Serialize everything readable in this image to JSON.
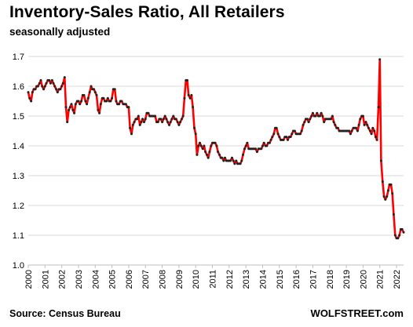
{
  "title": "Inventory-Sales  Ratio, All Retailers",
  "subtitle": "seasonally adjusted",
  "source": "Source: Census Bureau",
  "brand": "WOLFSTREET.com",
  "colors": {
    "line": "#ff0000",
    "marker": "#222222",
    "grid": "#d9d9d9",
    "axis": "#bfbfbf"
  },
  "chart_data": {
    "type": "line",
    "title": "Inventory-Sales  Ratio, All Retailers",
    "subtitle": "seasonally adjusted",
    "xlabel": "",
    "ylabel": "",
    "ylim": [
      1.0,
      1.7
    ],
    "yticks": [
      "1.0",
      "1.1",
      "1.2",
      "1.3",
      "1.4",
      "1.5",
      "1.6",
      "1.7"
    ],
    "xlim": [
      2000.0,
      2022.42
    ],
    "xticks": [
      "2000",
      "2001",
      "2002",
      "2003",
      "2004",
      "2005",
      "2006",
      "2007",
      "2008",
      "2009",
      "2010",
      "2011",
      "2012",
      "2013",
      "2014",
      "2015",
      "2016",
      "2017",
      "2018",
      "2019",
      "2020",
      "2021",
      "2022"
    ],
    "grid": "horizontal",
    "legend": "none",
    "series": [
      {
        "x_unit": "year (monthly)",
        "points": [
          [
            2000.0,
            1.58
          ],
          [
            2000.08,
            1.56
          ],
          [
            2000.17,
            1.55
          ],
          [
            2000.25,
            1.58
          ],
          [
            2000.33,
            1.59
          ],
          [
            2000.42,
            1.59
          ],
          [
            2000.5,
            1.6
          ],
          [
            2000.58,
            1.6
          ],
          [
            2000.67,
            1.61
          ],
          [
            2000.75,
            1.62
          ],
          [
            2000.83,
            1.6
          ],
          [
            2000.92,
            1.59
          ],
          [
            2001.0,
            1.6
          ],
          [
            2001.08,
            1.61
          ],
          [
            2001.17,
            1.62
          ],
          [
            2001.25,
            1.62
          ],
          [
            2001.33,
            1.61
          ],
          [
            2001.42,
            1.62
          ],
          [
            2001.5,
            1.61
          ],
          [
            2001.58,
            1.6
          ],
          [
            2001.67,
            1.59
          ],
          [
            2001.75,
            1.58
          ],
          [
            2001.83,
            1.59
          ],
          [
            2001.92,
            1.59
          ],
          [
            2002.0,
            1.6
          ],
          [
            2002.08,
            1.61
          ],
          [
            2002.17,
            1.63
          ],
          [
            2002.25,
            1.53
          ],
          [
            2002.33,
            1.48
          ],
          [
            2002.42,
            1.52
          ],
          [
            2002.5,
            1.53
          ],
          [
            2002.58,
            1.54
          ],
          [
            2002.67,
            1.52
          ],
          [
            2002.75,
            1.51
          ],
          [
            2002.83,
            1.54
          ],
          [
            2002.92,
            1.55
          ],
          [
            2003.0,
            1.55
          ],
          [
            2003.08,
            1.54
          ],
          [
            2003.17,
            1.55
          ],
          [
            2003.25,
            1.57
          ],
          [
            2003.33,
            1.57
          ],
          [
            2003.42,
            1.55
          ],
          [
            2003.5,
            1.54
          ],
          [
            2003.58,
            1.56
          ],
          [
            2003.67,
            1.58
          ],
          [
            2003.75,
            1.6
          ],
          [
            2003.83,
            1.59
          ],
          [
            2003.92,
            1.59
          ],
          [
            2004.0,
            1.58
          ],
          [
            2004.08,
            1.57
          ],
          [
            2004.17,
            1.52
          ],
          [
            2004.25,
            1.51
          ],
          [
            2004.33,
            1.54
          ],
          [
            2004.42,
            1.56
          ],
          [
            2004.5,
            1.56
          ],
          [
            2004.58,
            1.55
          ],
          [
            2004.67,
            1.55
          ],
          [
            2004.75,
            1.56
          ],
          [
            2004.83,
            1.55
          ],
          [
            2004.92,
            1.55
          ],
          [
            2005.0,
            1.56
          ],
          [
            2005.08,
            1.59
          ],
          [
            2005.17,
            1.59
          ],
          [
            2005.25,
            1.55
          ],
          [
            2005.33,
            1.54
          ],
          [
            2005.42,
            1.54
          ],
          [
            2005.5,
            1.55
          ],
          [
            2005.58,
            1.55
          ],
          [
            2005.67,
            1.54
          ],
          [
            2005.75,
            1.54
          ],
          [
            2005.83,
            1.54
          ],
          [
            2005.92,
            1.53
          ],
          [
            2006.0,
            1.53
          ],
          [
            2006.08,
            1.46
          ],
          [
            2006.17,
            1.44
          ],
          [
            2006.25,
            1.47
          ],
          [
            2006.33,
            1.48
          ],
          [
            2006.42,
            1.49
          ],
          [
            2006.5,
            1.49
          ],
          [
            2006.58,
            1.5
          ],
          [
            2006.67,
            1.47
          ],
          [
            2006.75,
            1.48
          ],
          [
            2006.83,
            1.49
          ],
          [
            2006.92,
            1.48
          ],
          [
            2007.0,
            1.49
          ],
          [
            2007.08,
            1.51
          ],
          [
            2007.17,
            1.51
          ],
          [
            2007.25,
            1.5
          ],
          [
            2007.33,
            1.5
          ],
          [
            2007.42,
            1.5
          ],
          [
            2007.5,
            1.5
          ],
          [
            2007.58,
            1.5
          ],
          [
            2007.67,
            1.48
          ],
          [
            2007.75,
            1.48
          ],
          [
            2007.83,
            1.49
          ],
          [
            2007.92,
            1.49
          ],
          [
            2008.0,
            1.48
          ],
          [
            2008.08,
            1.49
          ],
          [
            2008.17,
            1.5
          ],
          [
            2008.25,
            1.49
          ],
          [
            2008.33,
            1.48
          ],
          [
            2008.42,
            1.47
          ],
          [
            2008.5,
            1.48
          ],
          [
            2008.58,
            1.49
          ],
          [
            2008.67,
            1.5
          ],
          [
            2008.75,
            1.49
          ],
          [
            2008.83,
            1.49
          ],
          [
            2008.92,
            1.48
          ],
          [
            2009.0,
            1.47
          ],
          [
            2009.08,
            1.48
          ],
          [
            2009.17,
            1.49
          ],
          [
            2009.25,
            1.5
          ],
          [
            2009.33,
            1.56
          ],
          [
            2009.42,
            1.62
          ],
          [
            2009.5,
            1.62
          ],
          [
            2009.58,
            1.57
          ],
          [
            2009.67,
            1.56
          ],
          [
            2009.75,
            1.57
          ],
          [
            2009.83,
            1.53
          ],
          [
            2009.92,
            1.46
          ],
          [
            2010.0,
            1.44
          ],
          [
            2010.08,
            1.37
          ],
          [
            2010.17,
            1.4
          ],
          [
            2010.25,
            1.41
          ],
          [
            2010.33,
            1.4
          ],
          [
            2010.42,
            1.39
          ],
          [
            2010.5,
            1.4
          ],
          [
            2010.58,
            1.38
          ],
          [
            2010.67,
            1.37
          ],
          [
            2010.75,
            1.36
          ],
          [
            2010.83,
            1.38
          ],
          [
            2010.92,
            1.4
          ],
          [
            2011.0,
            1.41
          ],
          [
            2011.08,
            1.41
          ],
          [
            2011.17,
            1.41
          ],
          [
            2011.25,
            1.4
          ],
          [
            2011.33,
            1.38
          ],
          [
            2011.42,
            1.37
          ],
          [
            2011.5,
            1.36
          ],
          [
            2011.58,
            1.36
          ],
          [
            2011.67,
            1.35
          ],
          [
            2011.75,
            1.36
          ],
          [
            2011.83,
            1.35
          ],
          [
            2011.92,
            1.35
          ],
          [
            2012.0,
            1.35
          ],
          [
            2012.08,
            1.35
          ],
          [
            2012.17,
            1.36
          ],
          [
            2012.25,
            1.35
          ],
          [
            2012.33,
            1.34
          ],
          [
            2012.42,
            1.35
          ],
          [
            2012.5,
            1.34
          ],
          [
            2012.58,
            1.34
          ],
          [
            2012.67,
            1.34
          ],
          [
            2012.75,
            1.35
          ],
          [
            2012.83,
            1.37
          ],
          [
            2012.92,
            1.39
          ],
          [
            2013.0,
            1.4
          ],
          [
            2013.08,
            1.41
          ],
          [
            2013.17,
            1.39
          ],
          [
            2013.25,
            1.39
          ],
          [
            2013.33,
            1.39
          ],
          [
            2013.42,
            1.39
          ],
          [
            2013.5,
            1.39
          ],
          [
            2013.58,
            1.39
          ],
          [
            2013.67,
            1.38
          ],
          [
            2013.75,
            1.39
          ],
          [
            2013.83,
            1.39
          ],
          [
            2013.92,
            1.39
          ],
          [
            2014.0,
            1.4
          ],
          [
            2014.08,
            1.41
          ],
          [
            2014.17,
            1.4
          ],
          [
            2014.25,
            1.4
          ],
          [
            2014.33,
            1.41
          ],
          [
            2014.42,
            1.41
          ],
          [
            2014.5,
            1.42
          ],
          [
            2014.58,
            1.43
          ],
          [
            2014.67,
            1.44
          ],
          [
            2014.75,
            1.46
          ],
          [
            2014.83,
            1.46
          ],
          [
            2014.92,
            1.44
          ],
          [
            2015.0,
            1.43
          ],
          [
            2015.08,
            1.42
          ],
          [
            2015.17,
            1.42
          ],
          [
            2015.25,
            1.42
          ],
          [
            2015.33,
            1.43
          ],
          [
            2015.42,
            1.43
          ],
          [
            2015.5,
            1.42
          ],
          [
            2015.58,
            1.43
          ],
          [
            2015.67,
            1.43
          ],
          [
            2015.75,
            1.44
          ],
          [
            2015.83,
            1.45
          ],
          [
            2015.92,
            1.45
          ],
          [
            2016.0,
            1.44
          ],
          [
            2016.08,
            1.44
          ],
          [
            2016.17,
            1.44
          ],
          [
            2016.25,
            1.44
          ],
          [
            2016.33,
            1.45
          ],
          [
            2016.42,
            1.47
          ],
          [
            2016.5,
            1.48
          ],
          [
            2016.58,
            1.49
          ],
          [
            2016.67,
            1.49
          ],
          [
            2016.75,
            1.48
          ],
          [
            2016.83,
            1.49
          ],
          [
            2016.92,
            1.5
          ],
          [
            2017.0,
            1.51
          ],
          [
            2017.08,
            1.5
          ],
          [
            2017.17,
            1.5
          ],
          [
            2017.25,
            1.51
          ],
          [
            2017.33,
            1.5
          ],
          [
            2017.42,
            1.5
          ],
          [
            2017.5,
            1.51
          ],
          [
            2017.58,
            1.5
          ],
          [
            2017.67,
            1.48
          ],
          [
            2017.75,
            1.49
          ],
          [
            2017.83,
            1.49
          ],
          [
            2017.92,
            1.49
          ],
          [
            2018.0,
            1.49
          ],
          [
            2018.08,
            1.49
          ],
          [
            2018.17,
            1.5
          ],
          [
            2018.25,
            1.48
          ],
          [
            2018.33,
            1.47
          ],
          [
            2018.42,
            1.46
          ],
          [
            2018.5,
            1.46
          ],
          [
            2018.58,
            1.45
          ],
          [
            2018.67,
            1.45
          ],
          [
            2018.75,
            1.45
          ],
          [
            2018.83,
            1.45
          ],
          [
            2018.92,
            1.45
          ],
          [
            2019.0,
            1.45
          ],
          [
            2019.08,
            1.45
          ],
          [
            2019.17,
            1.45
          ],
          [
            2019.25,
            1.44
          ],
          [
            2019.33,
            1.45
          ],
          [
            2019.42,
            1.46
          ],
          [
            2019.5,
            1.46
          ],
          [
            2019.58,
            1.46
          ],
          [
            2019.67,
            1.45
          ],
          [
            2019.75,
            1.47
          ],
          [
            2019.83,
            1.49
          ],
          [
            2019.92,
            1.5
          ],
          [
            2020.0,
            1.5
          ],
          [
            2020.08,
            1.47
          ],
          [
            2020.17,
            1.48
          ],
          [
            2020.25,
            1.47
          ],
          [
            2020.33,
            1.46
          ],
          [
            2020.42,
            1.45
          ],
          [
            2020.5,
            1.44
          ],
          [
            2020.58,
            1.46
          ],
          [
            2020.67,
            1.45
          ],
          [
            2020.75,
            1.43
          ],
          [
            2020.83,
            1.42
          ],
          [
            2020.92,
            1.53
          ],
          [
            2021.0,
            1.69
          ],
          [
            2021.08,
            1.35
          ],
          [
            2021.17,
            1.28
          ],
          [
            2021.25,
            1.23
          ],
          [
            2021.33,
            1.22
          ],
          [
            2021.42,
            1.23
          ],
          [
            2021.5,
            1.25
          ],
          [
            2021.58,
            1.27
          ],
          [
            2021.67,
            1.27
          ],
          [
            2021.75,
            1.24
          ],
          [
            2021.83,
            1.17
          ],
          [
            2021.92,
            1.1
          ],
          [
            2022.0,
            1.09
          ],
          [
            2022.08,
            1.09
          ],
          [
            2022.17,
            1.1
          ],
          [
            2022.25,
            1.12
          ],
          [
            2022.33,
            1.12
          ],
          [
            2022.42,
            1.11
          ]
        ]
      }
    ]
  }
}
